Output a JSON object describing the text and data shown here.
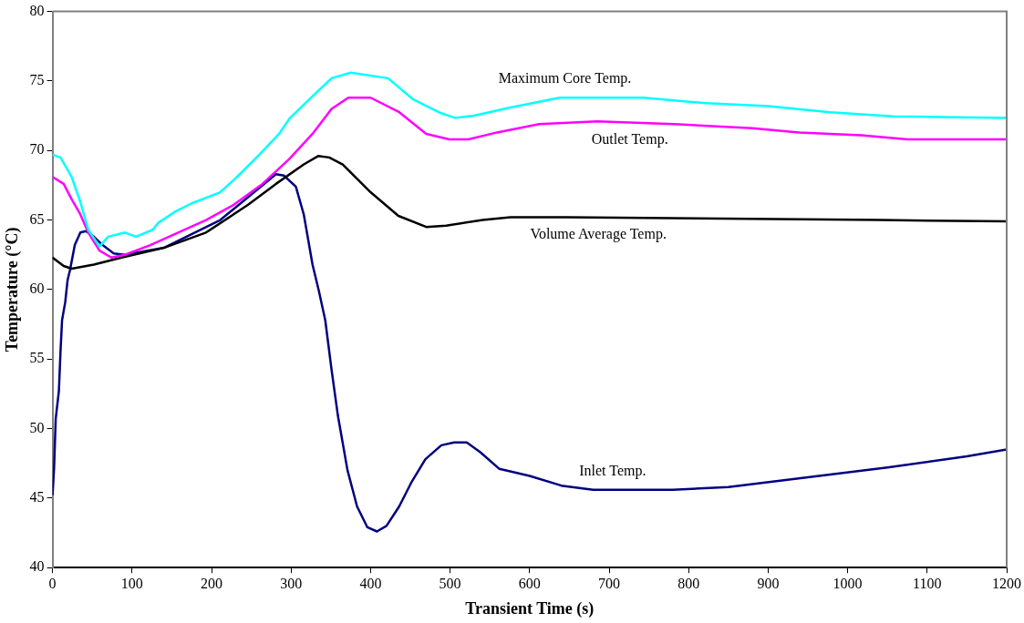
{
  "chart_data": {
    "type": "line",
    "xlabel": "Transient Time (s)",
    "ylabel": "Temperature (°C)",
    "xlim": [
      0,
      1200
    ],
    "xticks": [
      0,
      100,
      200,
      300,
      400,
      500,
      600,
      700,
      800,
      900,
      1000,
      1100,
      1200
    ],
    "ylim": [
      40,
      80
    ],
    "yticks": [
      40,
      45,
      50,
      55,
      60,
      65,
      70,
      75,
      80
    ],
    "grid": false,
    "legend": false,
    "marker": "none",
    "line_style": "solid",
    "series": [
      {
        "name": "Maximum Core Temp.",
        "color": "#00ffff",
        "x": [
          0,
          10,
          24,
          35,
          45,
          59,
          70,
          91,
          105,
          126,
          133,
          154,
          175,
          211,
          232,
          260,
          285,
          298,
          327,
          351,
          375,
          422,
          453,
          488,
          506,
          530,
          576,
          638,
          743,
          822,
          900,
          978,
          1057,
          1200
        ],
        "values": [
          69.7,
          69.5,
          68.1,
          66.3,
          64.3,
          63.1,
          63.8,
          64.1,
          63.8,
          64.3,
          64.8,
          65.6,
          66.2,
          67.0,
          68.1,
          69.7,
          71.2,
          72.3,
          73.9,
          75.2,
          75.6,
          75.2,
          73.7,
          72.7,
          72.35,
          72.5,
          73.1,
          73.8,
          73.8,
          73.4,
          73.2,
          72.75,
          72.45,
          72.35
        ]
      },
      {
        "name": "Outlet Temp.",
        "color": "#ff00ff",
        "x": [
          0,
          14,
          24,
          35,
          45,
          59,
          74,
          91,
          123,
          158,
          193,
          228,
          264,
          298,
          327,
          351,
          372,
          400,
          435,
          470,
          499,
          523,
          559,
          612,
          685,
          782,
          880,
          939,
          1017,
          1075,
          1200
        ],
        "values": [
          68.1,
          67.6,
          66.5,
          65.4,
          64.1,
          62.8,
          62.3,
          62.5,
          63.2,
          64.1,
          65.0,
          66.1,
          67.6,
          69.4,
          71.2,
          73.0,
          73.8,
          73.8,
          72.8,
          71.2,
          70.8,
          70.8,
          71.3,
          71.9,
          72.1,
          71.9,
          71.6,
          71.3,
          71.1,
          70.8,
          70.8
        ]
      },
      {
        "name": "Volume Average Temp.",
        "color": "#000000",
        "x": [
          0,
          14,
          24,
          52,
          87,
          140,
          193,
          246,
          281,
          316,
          334,
          348,
          365,
          400,
          435,
          470,
          495,
          541,
          576,
          646,
          1041,
          1200
        ],
        "values": [
          62.3,
          61.7,
          61.5,
          61.8,
          62.3,
          63.0,
          64.1,
          66.1,
          67.6,
          69.0,
          69.6,
          69.5,
          69.0,
          67.0,
          65.3,
          64.5,
          64.6,
          65.0,
          65.2,
          65.2,
          65.0,
          64.9
        ]
      },
      {
        "name": "Inlet Temp.",
        "color": "#000080",
        "x": [
          0,
          2,
          4,
          8,
          10,
          12,
          16,
          19,
          22,
          28,
          35,
          42,
          52,
          63,
          77,
          91,
          140,
          211,
          281,
          291,
          306,
          316,
          327,
          335,
          343,
          351,
          359,
          371,
          383,
          396,
          408,
          420,
          436,
          452,
          469,
          489,
          505,
          521,
          538,
          562,
          600,
          640,
          680,
          780,
          850,
          950,
          1050,
          1150,
          1200
        ],
        "values": [
          45.2,
          47.2,
          50.7,
          52.7,
          55.5,
          57.8,
          59.1,
          60.7,
          61.4,
          63.2,
          64.1,
          64.2,
          63.8,
          63.2,
          62.6,
          62.5,
          63.0,
          65.0,
          68.3,
          68.2,
          67.4,
          65.4,
          61.8,
          59.9,
          57.8,
          54.2,
          50.9,
          47.0,
          44.4,
          42.9,
          42.6,
          43.0,
          44.4,
          46.2,
          47.8,
          48.8,
          49.0,
          49.0,
          48.3,
          47.1,
          46.6,
          45.9,
          45.6,
          45.6,
          45.8,
          46.5,
          47.2,
          48.0,
          48.5
        ]
      }
    ]
  }
}
